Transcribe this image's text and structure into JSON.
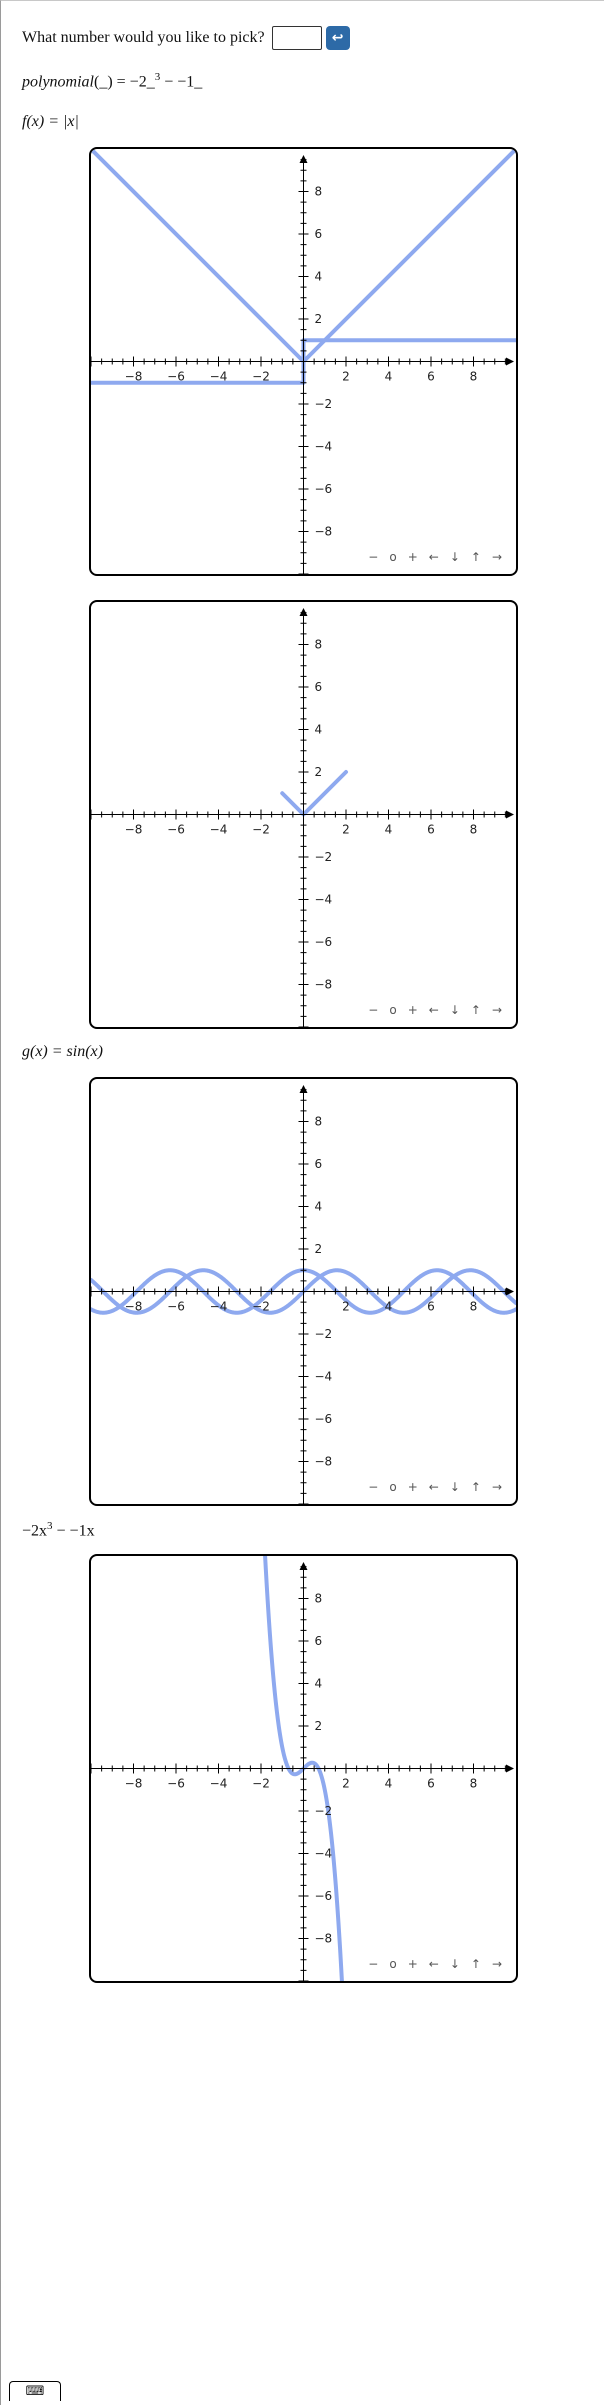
{
  "prompt": {
    "question": "What number would you like to pick?",
    "input_value": "",
    "submit_icon": "↩"
  },
  "formulas": {
    "polynomial": {
      "name": "polynomial",
      "paren": "(_)",
      "rest1": " = −2_",
      "exp": "3",
      "rest2": " − −1_"
    },
    "f": {
      "text": "f(x) = |x|"
    },
    "g": {
      "text": "g(x) = sin(x)"
    },
    "cubic": {
      "text": "−2x",
      "exp": "3",
      "rest": " − −1x"
    }
  },
  "nav_controls": [
    "−",
    "o",
    "+",
    "←",
    "↓",
    "↑",
    "→"
  ],
  "keyboard_icon": "⌨",
  "colors": {
    "curve": "#8ea9ef",
    "axis": "#000000",
    "submit": "#2d6aa7"
  },
  "chart_data": [
    {
      "type": "line",
      "xlim": [
        -10,
        10
      ],
      "ylim": [
        -10,
        10
      ],
      "xticks": [
        -8,
        -6,
        -4,
        -2,
        2,
        4,
        6,
        8
      ],
      "yticks": [
        -8,
        -6,
        -4,
        -2,
        2,
        4,
        6,
        8
      ],
      "series": [
        {
          "x": [
            -10,
            0,
            10
          ],
          "y": [
            10,
            0,
            10
          ]
        },
        {
          "x": [
            -10,
            0,
            0,
            10
          ],
          "y": [
            -1,
            -1,
            1,
            1
          ]
        }
      ]
    },
    {
      "type": "line",
      "xlim": [
        -10,
        10
      ],
      "ylim": [
        -10,
        10
      ],
      "xticks": [
        -8,
        -6,
        -4,
        -2,
        2,
        4,
        6,
        8
      ],
      "yticks": [
        -8,
        -6,
        -4,
        -2,
        2,
        4,
        6,
        8
      ],
      "series": [
        {
          "x": [
            -1,
            0,
            2
          ],
          "y": [
            1,
            0,
            2
          ]
        }
      ]
    },
    {
      "type": "line",
      "xlim": [
        -10,
        10
      ],
      "ylim": [
        -10,
        10
      ],
      "xticks": [
        -8,
        -6,
        -4,
        -2,
        2,
        4,
        6,
        8
      ],
      "yticks": [
        -8,
        -6,
        -4,
        -2,
        2,
        4,
        6,
        8
      ],
      "series": [
        {
          "function": "sin(x)"
        },
        {
          "function": "cos(x)"
        }
      ]
    },
    {
      "type": "line",
      "xlim": [
        -10,
        10
      ],
      "ylim": [
        -10,
        10
      ],
      "xticks": [
        -8,
        -6,
        -4,
        -2,
        2,
        4,
        6,
        8
      ],
      "yticks": [
        -8,
        -6,
        -4,
        -2,
        2,
        4,
        6,
        8
      ],
      "series": [
        {
          "function": "-2x^3 + x"
        }
      ]
    }
  ]
}
